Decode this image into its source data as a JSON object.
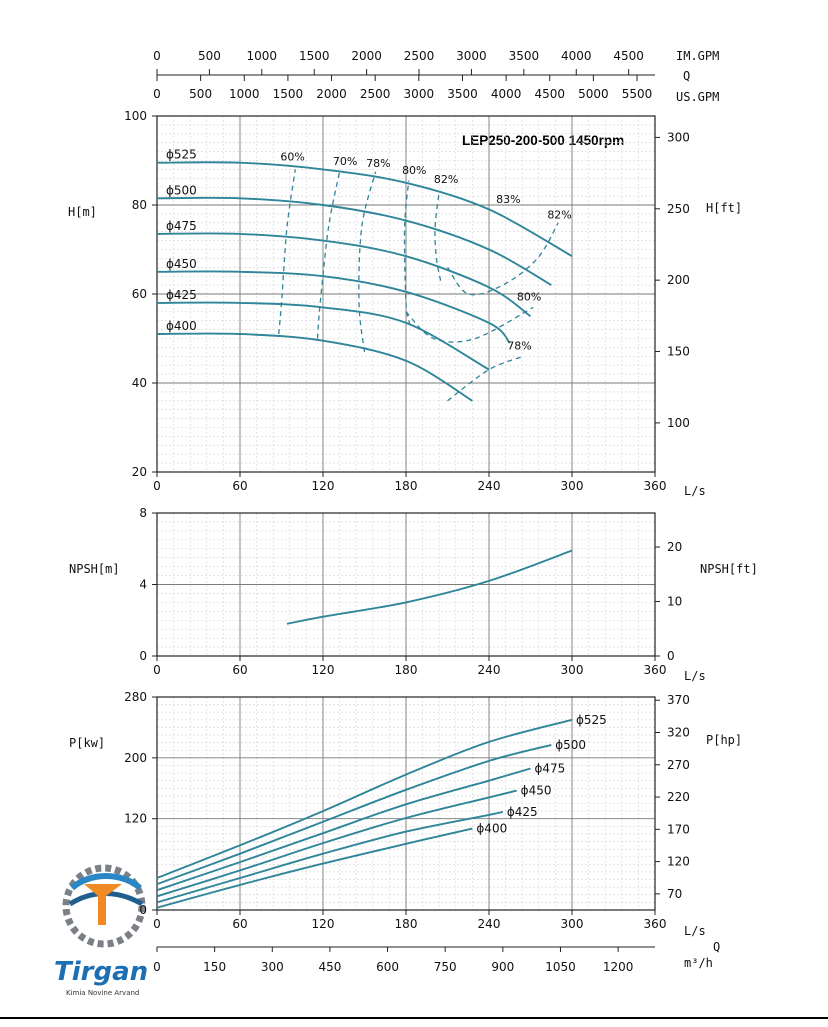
{
  "colors": {
    "curve": "#2f8599",
    "grid_major": "#7a7a7a",
    "grid_minor": "#d4d4d4",
    "axis": "#222222",
    "text": "#111111"
  },
  "chart_data": [
    {
      "id": "head",
      "type": "line",
      "title": "LEP250-200-500 1450rpm",
      "xlabel": "L/s",
      "ylabel": "H[m]",
      "y2label": "H[ft]",
      "xlim": [
        0,
        360
      ],
      "ylim": [
        20,
        100
      ],
      "x_ticks": [
        "0",
        "60",
        "120",
        "180",
        "240",
        "300",
        "360"
      ],
      "y_ticks": [
        "20",
        "40",
        "60",
        "80",
        "100"
      ],
      "y2_ticks": [
        "100",
        "150",
        "200",
        "250",
        "300"
      ],
      "top_axes": {
        "im_gpm_label": "IM.GPM",
        "q_label": "Q",
        "us_gpm_label": "US.GPM",
        "im_gpm_ticks": [
          "0",
          "500",
          "1000",
          "1500",
          "2000",
          "2500",
          "3000",
          "3500",
          "4000",
          "4500"
        ],
        "us_gpm_ticks": [
          "0",
          "500",
          "1000",
          "1500",
          "2000",
          "2500",
          "3000",
          "3500",
          "4000",
          "4500",
          "5000",
          "5500"
        ]
      },
      "grid": true,
      "series": [
        {
          "name": "ϕ525",
          "x": [
            0,
            60,
            120,
            180,
            240,
            300
          ],
          "y": [
            89.5,
            89.5,
            88,
            85,
            79,
            68.5
          ]
        },
        {
          "name": "ϕ500",
          "x": [
            0,
            60,
            120,
            180,
            240,
            285
          ],
          "y": [
            81.5,
            81.5,
            80,
            76.5,
            70,
            62
          ]
        },
        {
          "name": "ϕ475",
          "x": [
            0,
            60,
            120,
            180,
            240,
            270
          ],
          "y": [
            73.5,
            73.5,
            72,
            68.5,
            61.5,
            55
          ]
        },
        {
          "name": "ϕ450",
          "x": [
            0,
            60,
            120,
            180,
            240,
            255
          ],
          "y": [
            65,
            65,
            64,
            60.5,
            53.5,
            49
          ]
        },
        {
          "name": "ϕ425",
          "x": [
            0,
            60,
            120,
            180,
            240
          ],
          "y": [
            58,
            58,
            57,
            53.5,
            43
          ]
        },
        {
          "name": "ϕ400",
          "x": [
            0,
            60,
            120,
            180,
            228
          ],
          "y": [
            51,
            51,
            49.5,
            45,
            36
          ]
        }
      ],
      "efficiency": [
        {
          "label": "60%",
          "x": [
            88,
            90,
            94,
            100
          ],
          "y": [
            51,
            58,
            75,
            88
          ]
        },
        {
          "label": "70%",
          "x": [
            116,
            118,
            124,
            132
          ],
          "y": [
            50,
            58,
            75,
            87.5
          ]
        },
        {
          "label": "78%",
          "x": [
            150,
            146,
            148,
            158
          ],
          "y": [
            47,
            58,
            75,
            87.5
          ]
        },
        {
          "label": "80%",
          "x": [
            183,
            180,
            179,
            182
          ],
          "y": [
            53,
            58,
            75,
            85.5
          ]
        },
        {
          "label": "82%",
          "x": [
            205,
            202,
            201,
            204
          ],
          "y": [
            63,
            68,
            75,
            83
          ]
        },
        {
          "label": "82%",
          "x": [
            210,
            225,
            250,
            275,
            290
          ],
          "y": [
            66,
            60,
            62,
            68,
            76
          ]
        },
        {
          "label": "80%",
          "x": [
            180,
            200,
            230,
            272
          ],
          "y": [
            56,
            50,
            50,
            57
          ]
        },
        {
          "label": "78%",
          "x": [
            210,
            240,
            265
          ],
          "y": [
            36,
            43,
            46
          ]
        }
      ],
      "efficiency_labels": [
        {
          "text": "60%",
          "x": 98,
          "y": 90
        },
        {
          "text": "70%",
          "x": 136,
          "y": 89
        },
        {
          "text": "78%",
          "x": 160,
          "y": 88.5
        },
        {
          "text": "80%",
          "x": 186,
          "y": 87
        },
        {
          "text": "82%",
          "x": 209,
          "y": 85
        },
        {
          "text": "83%",
          "x": 254,
          "y": 80.5
        },
        {
          "text": "82%",
          "x": 291,
          "y": 77
        },
        {
          "text": "80%",
          "x": 269,
          "y": 58.5
        },
        {
          "text": "78%",
          "x": 262,
          "y": 47.5
        }
      ]
    },
    {
      "id": "npsh",
      "type": "line",
      "xlabel": "L/s",
      "ylabel": "NPSH[m]",
      "y2label": "NPSH[ft]",
      "xlim": [
        0,
        360
      ],
      "ylim": [
        0,
        8
      ],
      "x_ticks": [
        "0",
        "60",
        "120",
        "180",
        "240",
        "300",
        "360"
      ],
      "y_ticks": [
        "0",
        "4",
        "8"
      ],
      "y2_ticks": [
        "0",
        "10",
        "20"
      ],
      "grid": true,
      "series": [
        {
          "name": "",
          "x": [
            94,
            120,
            180,
            240,
            300
          ],
          "y": [
            1.8,
            2.2,
            3.0,
            4.2,
            5.9
          ]
        }
      ]
    },
    {
      "id": "power",
      "type": "line",
      "xlabel": "L/s",
      "ylabel": "P[kw]",
      "y2label": "P[hp]",
      "xlim": [
        0,
        360
      ],
      "ylim": [
        0,
        280
      ],
      "x_ticks": [
        "0",
        "60",
        "120",
        "180",
        "240",
        "300",
        "360"
      ],
      "y_ticks": [
        "0",
        "120",
        "200",
        "280"
      ],
      "y2_ticks": [
        "70",
        "120",
        "170",
        "220",
        "270",
        "320",
        "370"
      ],
      "bottom_axis": {
        "q_label": "Q",
        "unit": "m³/h",
        "ticks": [
          "0",
          "150",
          "300",
          "450",
          "600",
          "750",
          "900",
          "1050",
          "1200"
        ]
      },
      "grid": true,
      "series": [
        {
          "name": "ϕ525",
          "x": [
            0,
            60,
            120,
            180,
            240,
            300
          ],
          "y": [
            42,
            85,
            130,
            178,
            221,
            250
          ]
        },
        {
          "name": "ϕ500",
          "x": [
            0,
            60,
            120,
            180,
            240,
            285
          ],
          "y": [
            34,
            74,
            116,
            158,
            196,
            217
          ]
        },
        {
          "name": "ϕ475",
          "x": [
            0,
            60,
            120,
            180,
            240,
            270
          ],
          "y": [
            26,
            63,
            101,
            139,
            170,
            186
          ]
        },
        {
          "name": "ϕ450",
          "x": [
            0,
            60,
            120,
            180,
            240,
            260
          ],
          "y": [
            18,
            52,
            88,
            121,
            148,
            157
          ]
        },
        {
          "name": "ϕ425",
          "x": [
            0,
            60,
            120,
            180,
            240,
            250
          ],
          "y": [
            10,
            42,
            74,
            103,
            125,
            129
          ]
        },
        {
          "name": "ϕ400",
          "x": [
            0,
            60,
            120,
            180,
            228
          ],
          "y": [
            3,
            33,
            61,
            87,
            107
          ]
        }
      ]
    }
  ],
  "logo": {
    "brand": "Tirgan",
    "tagline": "Kimia Novine Arvand"
  }
}
